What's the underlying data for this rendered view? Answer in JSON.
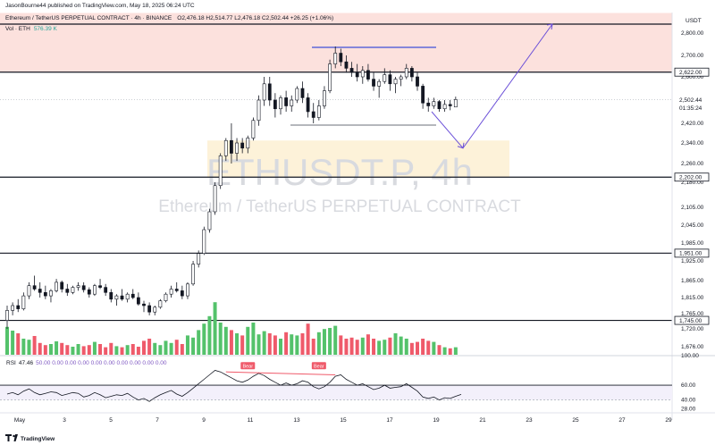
{
  "meta": {
    "published_by": "JasonBourne44 published on TradingView.com, May 18, 2025 06:24 UTC",
    "header": "Ethereum / TetherUS PERPETUAL CONTRACT · 4h · BINANCE",
    "ohlc": "O2,476.18 H2,514.77 L2,476.18 C2,502.44 +26.25 (+1.06%)",
    "vol_label": "Vol · ETH",
    "vol_value": "576.39 K",
    "currency": "USDT",
    "watermark_symbol": "ETHUSDT.P, 4h",
    "watermark_name": "Ethereum / TetherUS PERPETUAL CONTRACT",
    "footer_brand": "TradingView"
  },
  "chart_data": {
    "type": "candlestick",
    "title": "Ethereum / TetherUS PERPETUAL CONTRACT · 4h · BINANCE",
    "ylim": [
      1630,
      2890
    ],
    "y_ticks": [
      "2,800.00",
      "2,700.00",
      "2,600.00",
      "2,500.00",
      "2,420.00",
      "2,340.00",
      "2,260.00",
      "2,180.00",
      "2,105.00",
      "2,045.00",
      "1,985.00",
      "1,925.00",
      "1,865.00",
      "1,815.00",
      "1,765.00",
      "1,720.00",
      "1,676.00"
    ],
    "y_tick_values": [
      2800,
      2700,
      2600,
      2500,
      2420,
      2340,
      2260,
      2180,
      2105,
      2045,
      1985,
      1925,
      1865,
      1815,
      1765,
      1720,
      1676
    ],
    "x_ticks": [
      "May",
      "3",
      "5",
      "7",
      "9",
      "11",
      "13",
      "15",
      "17",
      "19",
      "21",
      "23",
      "25",
      "27",
      "29"
    ],
    "price_badges": [
      {
        "label": "2,622.00",
        "value": 2622,
        "kind": "level"
      },
      {
        "label": "2,502.44",
        "value": 2502.44,
        "kind": "last"
      },
      {
        "label": "01:35:24",
        "value": 2488,
        "kind": "countdown"
      },
      {
        "label": "2,202.00",
        "value": 2202,
        "kind": "level"
      },
      {
        "label": "1,951.00",
        "value": 1951,
        "kind": "level"
      },
      {
        "label": "1,745.00",
        "value": 1745,
        "kind": "level"
      }
    ],
    "horizontal_levels": [
      2622,
      2202,
      1951,
      1745
    ],
    "zones": [
      {
        "name": "supply",
        "from": 2622,
        "to": 2890,
        "color": "#fce1dd"
      },
      {
        "name": "demand",
        "from": 2202,
        "to": 2350,
        "color": "#fdf2d9"
      }
    ],
    "range_box": {
      "top": 2750,
      "bottom": 2410
    },
    "candles": [
      [
        1745,
        1790,
        1720,
        1775
      ],
      [
        1775,
        1800,
        1760,
        1790
      ],
      [
        1790,
        1810,
        1770,
        1780
      ],
      [
        1780,
        1830,
        1775,
        1820
      ],
      [
        1820,
        1860,
        1810,
        1850
      ],
      [
        1850,
        1880,
        1835,
        1840
      ],
      [
        1840,
        1860,
        1815,
        1830
      ],
      [
        1830,
        1850,
        1810,
        1820
      ],
      [
        1820,
        1840,
        1800,
        1835
      ],
      [
        1835,
        1870,
        1830,
        1860
      ],
      [
        1860,
        1865,
        1830,
        1840
      ],
      [
        1840,
        1855,
        1820,
        1830
      ],
      [
        1830,
        1850,
        1825,
        1845
      ],
      [
        1845,
        1860,
        1835,
        1850
      ],
      [
        1850,
        1860,
        1830,
        1838
      ],
      [
        1838,
        1845,
        1815,
        1825
      ],
      [
        1825,
        1855,
        1820,
        1850
      ],
      [
        1850,
        1870,
        1840,
        1845
      ],
      [
        1845,
        1855,
        1820,
        1830
      ],
      [
        1830,
        1840,
        1800,
        1810
      ],
      [
        1810,
        1825,
        1790,
        1820
      ],
      [
        1820,
        1840,
        1805,
        1810
      ],
      [
        1810,
        1830,
        1800,
        1825
      ],
      [
        1825,
        1840,
        1810,
        1815
      ],
      [
        1815,
        1830,
        1790,
        1795
      ],
      [
        1795,
        1805,
        1770,
        1790
      ],
      [
        1790,
        1800,
        1760,
        1770
      ],
      [
        1770,
        1790,
        1760,
        1785
      ],
      [
        1785,
        1810,
        1780,
        1805
      ],
      [
        1805,
        1830,
        1800,
        1825
      ],
      [
        1825,
        1850,
        1815,
        1840
      ],
      [
        1840,
        1860,
        1830,
        1835
      ],
      [
        1835,
        1850,
        1810,
        1820
      ],
      [
        1820,
        1860,
        1810,
        1855
      ],
      [
        1855,
        1925,
        1850,
        1915
      ],
      [
        1915,
        1960,
        1905,
        1950
      ],
      [
        1950,
        2040,
        1945,
        2030
      ],
      [
        2030,
        2100,
        2020,
        2090
      ],
      [
        2090,
        2180,
        2080,
        2170
      ],
      [
        2170,
        2300,
        2160,
        2290
      ],
      [
        2290,
        2360,
        2270,
        2350
      ],
      [
        2350,
        2420,
        2260,
        2300
      ],
      [
        2300,
        2360,
        2270,
        2340
      ],
      [
        2340,
        2360,
        2300,
        2320
      ],
      [
        2320,
        2370,
        2300,
        2360
      ],
      [
        2360,
        2440,
        2350,
        2430
      ],
      [
        2430,
        2520,
        2410,
        2500
      ],
      [
        2500,
        2600,
        2480,
        2570
      ],
      [
        2570,
        2600,
        2480,
        2500
      ],
      [
        2500,
        2530,
        2440,
        2470
      ],
      [
        2470,
        2520,
        2450,
        2510
      ],
      [
        2510,
        2540,
        2460,
        2480
      ],
      [
        2480,
        2520,
        2460,
        2500
      ],
      [
        2500,
        2560,
        2490,
        2550
      ],
      [
        2550,
        2580,
        2490,
        2510
      ],
      [
        2510,
        2530,
        2440,
        2460
      ],
      [
        2460,
        2490,
        2420,
        2440
      ],
      [
        2440,
        2500,
        2430,
        2480
      ],
      [
        2480,
        2560,
        2470,
        2540
      ],
      [
        2540,
        2680,
        2530,
        2660
      ],
      [
        2660,
        2740,
        2640,
        2710
      ],
      [
        2710,
        2730,
        2650,
        2670
      ],
      [
        2670,
        2700,
        2620,
        2640
      ],
      [
        2640,
        2670,
        2600,
        2620
      ],
      [
        2620,
        2660,
        2580,
        2600
      ],
      [
        2600,
        2650,
        2570,
        2630
      ],
      [
        2630,
        2660,
        2580,
        2590
      ],
      [
        2590,
        2620,
        2540,
        2560
      ],
      [
        2560,
        2590,
        2510,
        2580
      ],
      [
        2580,
        2640,
        2570,
        2610
      ],
      [
        2610,
        2630,
        2540,
        2570
      ],
      [
        2570,
        2600,
        2530,
        2590
      ],
      [
        2590,
        2610,
        2560,
        2600
      ],
      [
        2600,
        2660,
        2590,
        2640
      ],
      [
        2640,
        2650,
        2580,
        2600
      ],
      [
        2600,
        2620,
        2540,
        2560
      ],
      [
        2560,
        2570,
        2470,
        2490
      ],
      [
        2490,
        2510,
        2460,
        2480
      ],
      [
        2480,
        2510,
        2470,
        2495
      ],
      [
        2495,
        2500,
        2460,
        2470
      ],
      [
        2470,
        2500,
        2460,
        2485
      ],
      [
        2485,
        2500,
        2465,
        2480
      ],
      [
        2476.18,
        2514.77,
        2476.18,
        2502.44
      ]
    ],
    "volume_series": {
      "name": "Vol · ETH",
      "last": "576.39 K"
    },
    "rsi": {
      "label": "RSI",
      "value": "47.46",
      "params": "50.00 0.00 0.00 0.00 0.00 0.00 0.00 0.00 0.00 0.00",
      "levels": [
        60,
        40
      ],
      "ylim": [
        25,
        100
      ],
      "y_ticks": [
        "100.00",
        "60.00",
        "40.00",
        "28.00"
      ],
      "divergence_labels": [
        "Bear",
        "Bear"
      ]
    },
    "annotations": [
      {
        "type": "arrow",
        "from": [
          76,
          2430
        ],
        "to": [
          85,
          2320
        ]
      },
      {
        "type": "arrow",
        "from": [
          85,
          2320
        ],
        "to": [
          103,
          2850
        ]
      }
    ]
  }
}
